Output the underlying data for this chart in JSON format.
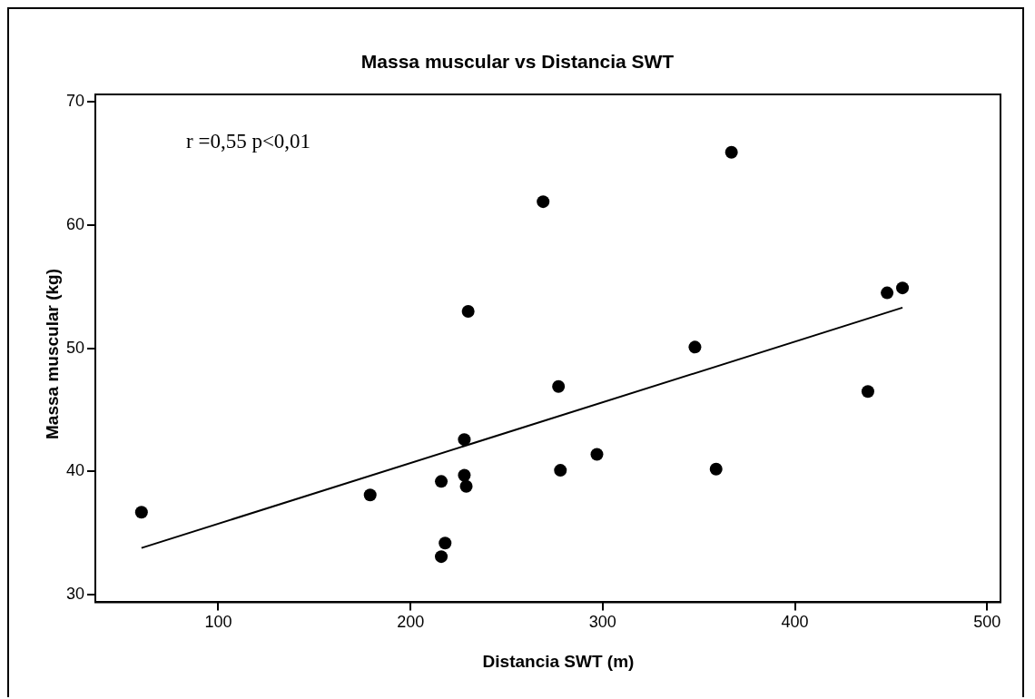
{
  "chart_data": {
    "type": "scatter",
    "title": "Massa muscular vs Distancia SWT",
    "xlabel": "Distancia SWT (m)",
    "ylabel": "Massa muscular (kg)",
    "annotations": [
      "r =0,55 p<0,01"
    ],
    "xlim": [
      36,
      507
    ],
    "ylim": [
      29.4,
      70.6
    ],
    "xticks": [
      100,
      200,
      300,
      400,
      500
    ],
    "yticks": [
      30,
      40,
      50,
      60,
      70
    ],
    "marker": "circle",
    "series": [
      {
        "color": "#000000",
        "x": [
          60,
          179,
          216,
          228,
          228,
          229,
          218,
          216,
          230,
          269,
          367,
          348,
          277,
          278,
          297,
          359,
          438,
          448,
          456
        ],
        "values": [
          36.7,
          38.1,
          39.2,
          42.6,
          39.7,
          38.8,
          34.2,
          33.1,
          53.0,
          61.9,
          65.9,
          50.1,
          46.9,
          40.1,
          41.4,
          40.2,
          46.5,
          54.5,
          54.9
        ]
      },
      {
        "type": "line",
        "color": "#000000",
        "marker": "none",
        "line_style": "solid",
        "x": [
          60,
          456
        ],
        "values": [
          33.8,
          53.3
        ]
      }
    ]
  }
}
